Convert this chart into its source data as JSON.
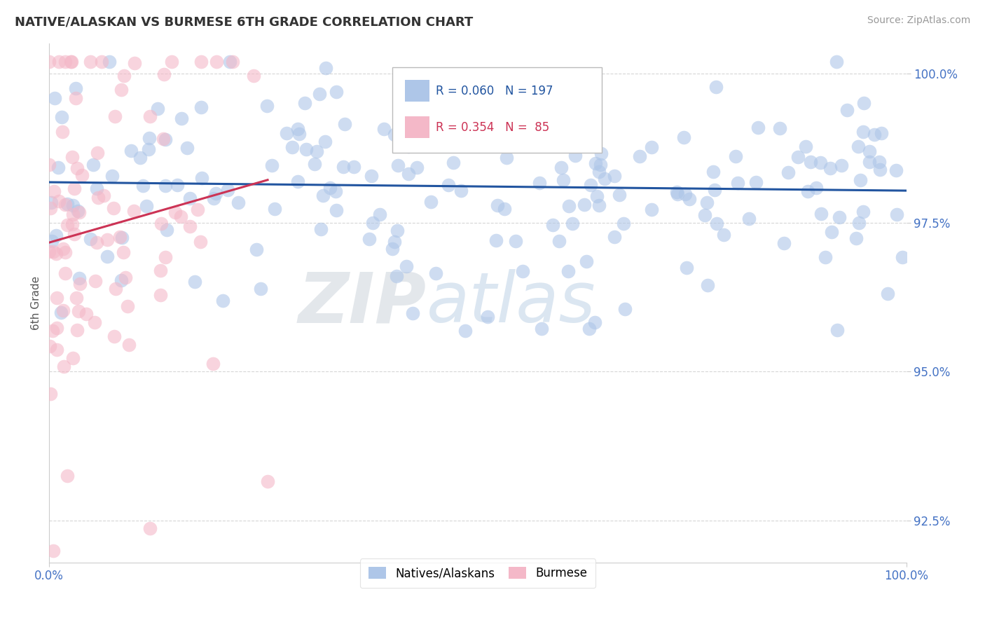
{
  "title": "NATIVE/ALASKAN VS BURMESE 6TH GRADE CORRELATION CHART",
  "source": "Source: ZipAtlas.com",
  "ylabel": "6th Grade",
  "xlim": [
    0.0,
    1.0
  ],
  "ylim": [
    0.918,
    1.005
  ],
  "x_ticks": [
    0.0,
    1.0
  ],
  "x_tick_labels": [
    "0.0%",
    "100.0%"
  ],
  "y_ticks": [
    0.925,
    0.95,
    0.975,
    1.0
  ],
  "y_tick_labels": [
    "92.5%",
    "95.0%",
    "97.5%",
    "100.0%"
  ],
  "native_color": "#aec6e8",
  "burmese_color": "#f4b8c8",
  "native_line_color": "#2255a0",
  "burmese_line_color": "#cc3355",
  "native_R": 0.06,
  "native_N": 197,
  "burmese_R": 0.354,
  "burmese_N": 85,
  "grid_color": "#cccccc",
  "background_color": "#ffffff",
  "title_color": "#333333",
  "axis_color": "#4472c4",
  "watermark_zip": "ZIP",
  "watermark_atlas": "atlas",
  "legend_label_native": "Natives/Alaskans",
  "legend_label_burmese": "Burmese"
}
